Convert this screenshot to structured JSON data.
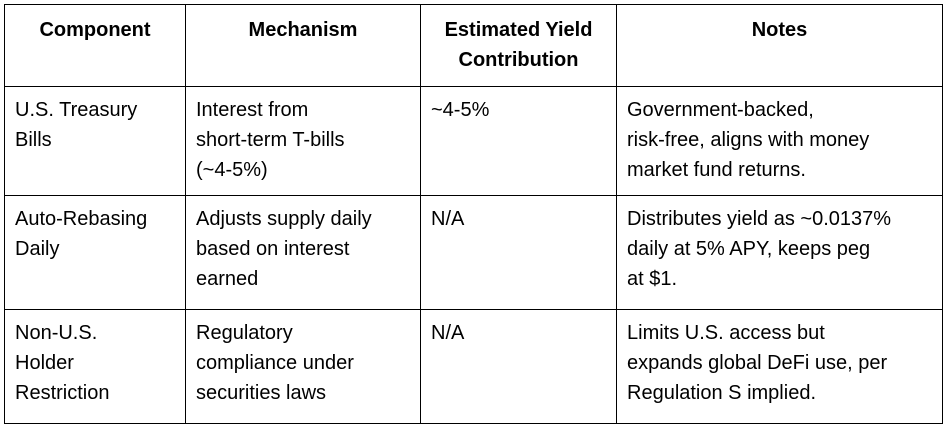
{
  "table": {
    "headers": [
      "Component",
      "Mechanism",
      "Estimated Yield\nContribution",
      "Notes"
    ],
    "rows": [
      {
        "component": "U.S. Treasury\nBills",
        "mechanism": "Interest from\nshort-term T-bills\n(~4-5%)",
        "yield": "~4-5%",
        "notes": "Government-backed,\nrisk-free, aligns with money\nmarket fund returns."
      },
      {
        "component": "Auto-Rebasing\nDaily",
        "mechanism": "Adjusts supply daily\nbased on interest\nearned",
        "yield": "N/A",
        "notes": "Distributes yield as ~0.0137%\ndaily at 5% APY, keeps peg\nat $1."
      },
      {
        "component": "Non-U.S.\nHolder\nRestriction",
        "mechanism": "Regulatory\ncompliance under\nsecurities laws",
        "yield": "N/A",
        "notes": "Limits U.S. access but\nexpands global DeFi use, per\nRegulation S implied."
      }
    ]
  }
}
